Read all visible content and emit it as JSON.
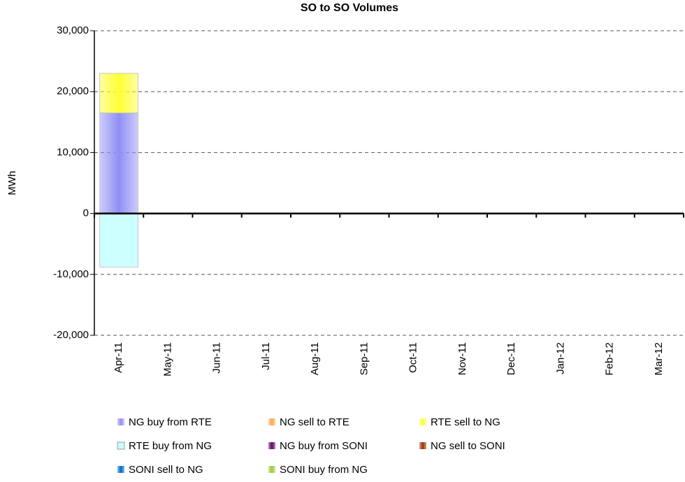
{
  "chart_data": {
    "type": "stacked_bar",
    "title": "SO to SO Volumes",
    "y_label": "MWh",
    "categories": [
      "Apr-11",
      "May-11",
      "Jun-11",
      "Jul-11",
      "Aug-11",
      "Sep-11",
      "Oct-11",
      "Nov-11",
      "Dec-11",
      "Jan-12",
      "Feb-12",
      "Mar-12"
    ],
    "series": [
      {
        "name": "NG buy from RTE",
        "color": "#8f8ff5",
        "values": [
          16500,
          0,
          0,
          0,
          0,
          0,
          0,
          0,
          0,
          0,
          0,
          0
        ]
      },
      {
        "name": "NG sell to RTE",
        "color": "#ffa64d",
        "values": [
          0,
          0,
          0,
          0,
          0,
          0,
          0,
          0,
          0,
          0,
          0,
          0
        ]
      },
      {
        "name": "RTE sell to NG",
        "color": "#ffff33",
        "values": [
          6500,
          0,
          0,
          0,
          0,
          0,
          0,
          0,
          0,
          0,
          0,
          0
        ]
      },
      {
        "name": "RTE buy from NG",
        "color": "#ccffff",
        "values": [
          -8800,
          0,
          0,
          0,
          0,
          0,
          0,
          0,
          0,
          0,
          0,
          0
        ]
      },
      {
        "name": "NG buy from SONI",
        "color": "#660066",
        "values": [
          0,
          0,
          0,
          0,
          0,
          0,
          0,
          0,
          0,
          0,
          0,
          0
        ]
      },
      {
        "name": "NG sell to SONI",
        "color": "#993300",
        "values": [
          0,
          0,
          0,
          0,
          0,
          0,
          0,
          0,
          0,
          0,
          0,
          0
        ]
      },
      {
        "name": "SONI sell to NG",
        "color": "#0066cc",
        "values": [
          0,
          0,
          0,
          0,
          0,
          0,
          0,
          0,
          0,
          0,
          0,
          0
        ]
      },
      {
        "name": "SONI buy from NG",
        "color": "#99cc33",
        "values": [
          0,
          0,
          0,
          0,
          0,
          0,
          0,
          0,
          0,
          0,
          0,
          0
        ]
      }
    ],
    "ylim": [
      -20000,
      30000
    ],
    "yticks": [
      {
        "value": -20000,
        "label": "-20,000"
      },
      {
        "value": -10000,
        "label": "-10,000"
      },
      0,
      {
        "value": 10000,
        "label": "10,000"
      },
      {
        "value": 20000,
        "label": "20,000"
      },
      {
        "value": 30000,
        "label": "30,000"
      }
    ],
    "grid": true
  }
}
